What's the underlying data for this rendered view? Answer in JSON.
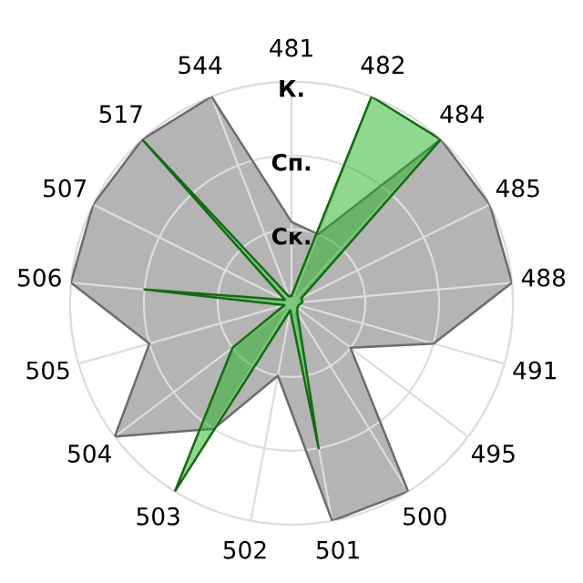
{
  "chart_data": {
    "type": "radar",
    "categories": [
      "481",
      "482",
      "484",
      "485",
      "488",
      "491",
      "495",
      "500",
      "501",
      "502",
      "503",
      "504",
      "505",
      "506",
      "507",
      "517",
      "544"
    ],
    "series": [
      {
        "color": "#b4b4b4",
        "values": [
          1.1,
          1.0,
          3,
          3,
          3,
          2.0,
          1.0,
          3,
          3,
          1.0,
          2.0,
          3,
          2.0,
          3,
          3,
          3,
          3
        ]
      },
      {
        "color": "#22b022",
        "values": [
          0.1,
          3,
          3,
          0.15,
          0.15,
          0.1,
          0.1,
          0.15,
          2.0,
          0.1,
          3,
          1.0,
          0.1,
          2.0,
          0.1,
          3,
          0.1
        ]
      }
    ],
    "ylim": [
      0,
      3
    ],
    "yticks": [
      {
        "value": 1,
        "label": "Ск."
      },
      {
        "value": 2,
        "label": "Сп."
      },
      {
        "value": 3,
        "label": "К."
      }
    ],
    "grid": true,
    "legend": false
  }
}
